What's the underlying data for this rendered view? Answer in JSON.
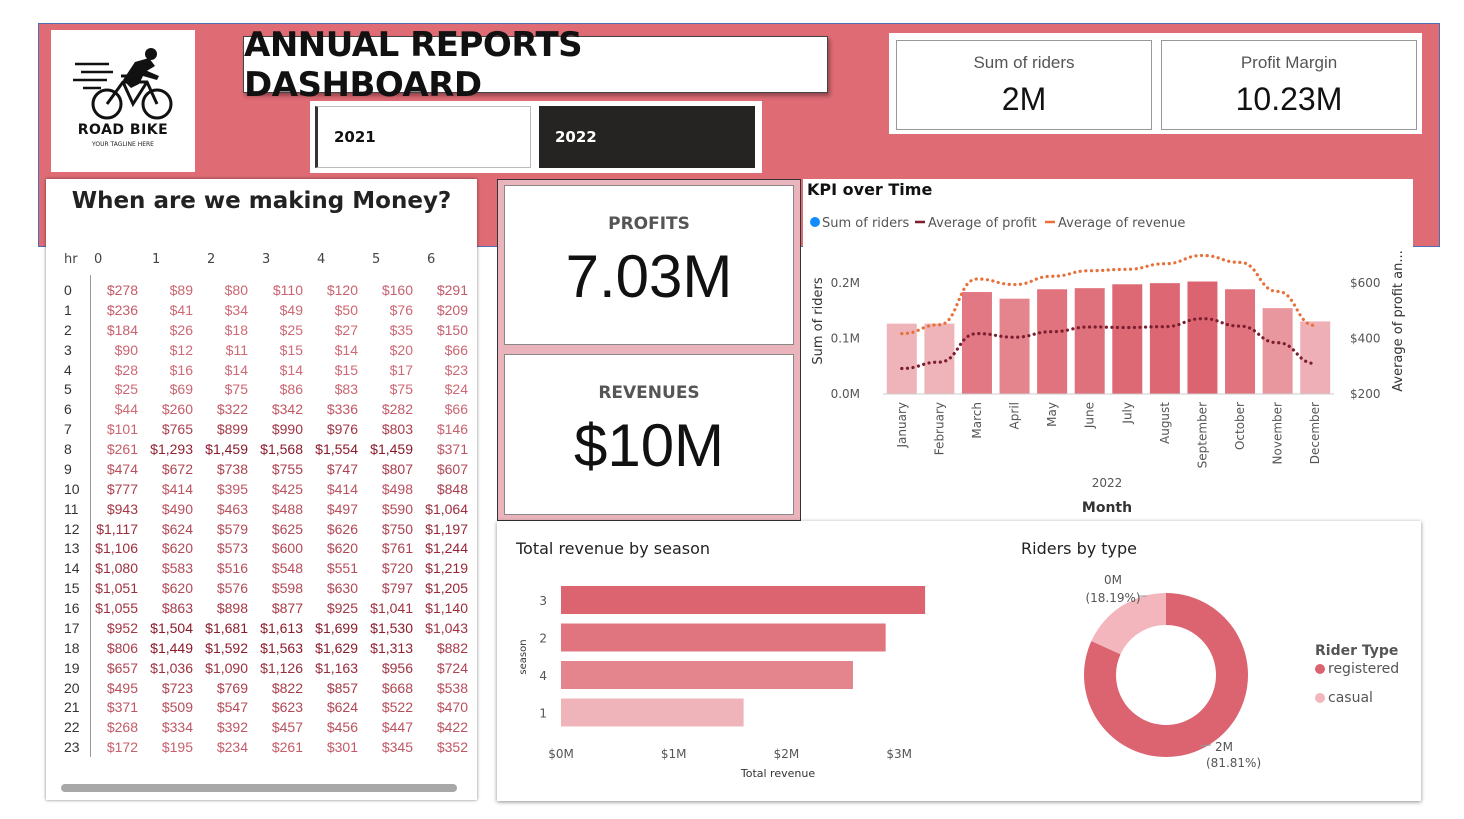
{
  "header": {
    "title": "ANNUAL REPORTS DASHBOARD",
    "logo": {
      "name": "ROAD BIKE",
      "tagline": "YOUR TAGLINE HERE"
    },
    "year_slicer": {
      "options": [
        "2021",
        "2022"
      ],
      "selected": "2022"
    }
  },
  "top_kpis": [
    {
      "label": "Sum of riders",
      "value": "2M"
    },
    {
      "label": "Profit Margin",
      "value": "10.23M"
    }
  ],
  "cards": {
    "profits": {
      "label": "PROFITS",
      "value": "7.03M"
    },
    "revenues": {
      "label": "REVENUES",
      "value": "$10M"
    }
  },
  "matrix": {
    "title": "When are we making Money?",
    "corner_label": "hr",
    "columns": [
      "0",
      "1",
      "2",
      "3",
      "4",
      "5",
      "6"
    ],
    "rows": [
      {
        "hr": "0",
        "values": [
          "$278",
          "$89",
          "$80",
          "$110",
          "$120",
          "$160",
          "$291"
        ]
      },
      {
        "hr": "1",
        "values": [
          "$236",
          "$41",
          "$34",
          "$49",
          "$50",
          "$76",
          "$209"
        ]
      },
      {
        "hr": "2",
        "values": [
          "$184",
          "$26",
          "$18",
          "$25",
          "$27",
          "$35",
          "$150"
        ]
      },
      {
        "hr": "3",
        "values": [
          "$90",
          "$12",
          "$11",
          "$15",
          "$14",
          "$20",
          "$66"
        ]
      },
      {
        "hr": "4",
        "values": [
          "$28",
          "$16",
          "$14",
          "$14",
          "$15",
          "$17",
          "$23"
        ]
      },
      {
        "hr": "5",
        "values": [
          "$25",
          "$69",
          "$75",
          "$86",
          "$83",
          "$75",
          "$24"
        ]
      },
      {
        "hr": "6",
        "values": [
          "$44",
          "$260",
          "$322",
          "$342",
          "$336",
          "$282",
          "$66"
        ]
      },
      {
        "hr": "7",
        "values": [
          "$101",
          "$765",
          "$899",
          "$990",
          "$976",
          "$803",
          "$146"
        ]
      },
      {
        "hr": "8",
        "values": [
          "$261",
          "$1,293",
          "$1,459",
          "$1,568",
          "$1,554",
          "$1,459",
          "$371"
        ]
      },
      {
        "hr": "9",
        "values": [
          "$474",
          "$672",
          "$738",
          "$755",
          "$747",
          "$807",
          "$607"
        ]
      },
      {
        "hr": "10",
        "values": [
          "$777",
          "$414",
          "$395",
          "$425",
          "$414",
          "$498",
          "$848"
        ]
      },
      {
        "hr": "11",
        "values": [
          "$943",
          "$490",
          "$463",
          "$488",
          "$497",
          "$590",
          "$1,064"
        ]
      },
      {
        "hr": "12",
        "values": [
          "$1,117",
          "$624",
          "$579",
          "$625",
          "$626",
          "$750",
          "$1,197"
        ]
      },
      {
        "hr": "13",
        "values": [
          "$1,106",
          "$620",
          "$573",
          "$600",
          "$620",
          "$761",
          "$1,244"
        ]
      },
      {
        "hr": "14",
        "values": [
          "$1,080",
          "$583",
          "$516",
          "$548",
          "$551",
          "$720",
          "$1,219"
        ]
      },
      {
        "hr": "15",
        "values": [
          "$1,051",
          "$620",
          "$576",
          "$598",
          "$630",
          "$797",
          "$1,205"
        ]
      },
      {
        "hr": "16",
        "values": [
          "$1,055",
          "$863",
          "$898",
          "$877",
          "$925",
          "$1,041",
          "$1,140"
        ]
      },
      {
        "hr": "17",
        "values": [
          "$952",
          "$1,504",
          "$1,681",
          "$1,613",
          "$1,699",
          "$1,530",
          "$1,043"
        ]
      },
      {
        "hr": "18",
        "values": [
          "$806",
          "$1,449",
          "$1,592",
          "$1,563",
          "$1,629",
          "$1,313",
          "$882"
        ]
      },
      {
        "hr": "19",
        "values": [
          "$657",
          "$1,036",
          "$1,090",
          "$1,126",
          "$1,163",
          "$956",
          "$724"
        ]
      },
      {
        "hr": "20",
        "values": [
          "$495",
          "$723",
          "$769",
          "$822",
          "$857",
          "$668",
          "$538"
        ]
      },
      {
        "hr": "21",
        "values": [
          "$371",
          "$509",
          "$547",
          "$623",
          "$624",
          "$522",
          "$470"
        ]
      },
      {
        "hr": "22",
        "values": [
          "$268",
          "$334",
          "$392",
          "$457",
          "$456",
          "$447",
          "$422"
        ]
      },
      {
        "hr": "23",
        "values": [
          "$172",
          "$195",
          "$234",
          "$261",
          "$301",
          "$345",
          "$352"
        ]
      }
    ]
  },
  "colors": {
    "band": "#df6b74",
    "bar_dark": "#dc6470",
    "bar_light": "#efb4ba",
    "profit_line": "#7b1e2e",
    "revenue_line": "#e8703a",
    "riders_dot": "#118dff",
    "text_dark": "#8b1a2b",
    "text_light": "#d06a76"
  },
  "chart_data": [
    {
      "type": "bar+line",
      "title": "KPI over Time",
      "categories": [
        "January",
        "February",
        "March",
        "April",
        "May",
        "June",
        "July",
        "August",
        "September",
        "October",
        "November",
        "December"
      ],
      "x_group_label": "2022",
      "xlabel": "Month",
      "ylabel": "Sum of riders",
      "y2label": "Average of profit an...",
      "ylim": [
        0,
        0.24
      ],
      "y_ticks": [
        "0.0M",
        "0.1M",
        "0.2M"
      ],
      "y2lim": [
        200,
        680
      ],
      "y2_ticks": [
        "$200",
        "$400",
        "$600"
      ],
      "legend_position": "top-left",
      "series": [
        {
          "name": "Sum of riders",
          "kind": "bar",
          "values": [
            0.127,
            0.127,
            0.184,
            0.172,
            0.189,
            0.191,
            0.198,
            0.2,
            0.203,
            0.189,
            0.155,
            0.131
          ]
        },
        {
          "name": "Average of profit",
          "kind": "line",
          "values": [
            292,
            315,
            418,
            405,
            425,
            442,
            440,
            443,
            472,
            445,
            385,
            310
          ]
        },
        {
          "name": "Average of revenue",
          "kind": "line",
          "values": [
            418,
            450,
            615,
            595,
            625,
            645,
            650,
            670,
            700,
            675,
            570,
            447
          ]
        }
      ]
    },
    {
      "type": "bar",
      "orientation": "horizontal",
      "title": "Total revenue by season",
      "categories": [
        "3",
        "2",
        "4",
        "1"
      ],
      "values": [
        3.23,
        2.88,
        2.59,
        1.62
      ],
      "xlabel": "Total revenue",
      "ylabel": "season",
      "xlim": [
        0,
        3.3
      ],
      "x_ticks": [
        "$0M",
        "$1M",
        "$2M",
        "$3M"
      ]
    },
    {
      "type": "pie",
      "style": "donut",
      "title": "Riders by type",
      "legend_title": "Rider Type",
      "labels": [
        "registered",
        "casual"
      ],
      "values": [
        81.81,
        18.19
      ],
      "data_labels": [
        {
          "value": "2M",
          "pct": "(81.81%)"
        },
        {
          "value": "0M",
          "pct": "(18.19%)"
        }
      ],
      "colors": [
        "#dc6470",
        "#f2b6bc"
      ]
    }
  ]
}
